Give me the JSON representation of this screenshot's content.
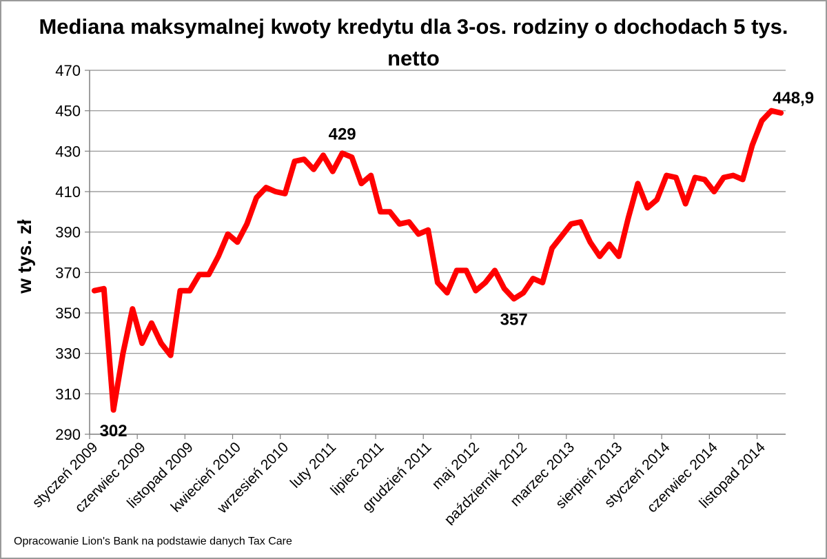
{
  "chart_data": {
    "type": "line",
    "title": "Mediana maksymalnej kwoty kredytu dla 3-os. rodziny o dochodach 5 tys. netto",
    "title_lines": [
      "Mediana maksymalnej kwoty kredytu dla 3-os. rodziny o dochodach 5 tys.",
      "netto"
    ],
    "xlabel": "",
    "ylabel": "w tys. zł",
    "ylim": [
      290,
      470
    ],
    "yticks": [
      290,
      310,
      330,
      350,
      370,
      390,
      410,
      430,
      450,
      470
    ],
    "grid": true,
    "legend": "none",
    "line_color": "#ff0000",
    "x_tick_labels": [
      {
        "index": 0,
        "label": "styczeń 2009"
      },
      {
        "index": 5,
        "label": "czerwiec 2009"
      },
      {
        "index": 10,
        "label": "listopad 2009"
      },
      {
        "index": 15,
        "label": "kwiecień 2010"
      },
      {
        "index": 20,
        "label": "wrzesień 2010"
      },
      {
        "index": 25,
        "label": "luty 2011"
      },
      {
        "index": 30,
        "label": "lipiec 2011"
      },
      {
        "index": 35,
        "label": "grudzień 2011"
      },
      {
        "index": 40,
        "label": "maj 2012"
      },
      {
        "index": 45,
        "label": "październik 2012"
      },
      {
        "index": 50,
        "label": "marzec 2013"
      },
      {
        "index": 55,
        "label": "sierpień 2013"
      },
      {
        "index": 60,
        "label": "styczeń 2014"
      },
      {
        "index": 65,
        "label": "czerwiec 2014"
      },
      {
        "index": 70,
        "label": "listopad 2014"
      }
    ],
    "values": [
      361,
      362,
      302,
      330,
      352,
      335,
      345,
      335,
      329,
      361,
      361,
      369,
      369,
      378,
      389,
      385,
      394,
      407,
      412,
      410,
      409,
      425,
      426,
      421,
      428,
      420,
      429,
      427,
      414,
      418,
      400,
      400,
      394,
      395,
      389,
      391,
      365,
      360,
      371,
      371,
      361,
      365,
      371,
      362,
      357,
      360,
      367,
      365,
      382,
      388,
      394,
      395,
      385,
      378,
      384,
      378,
      397,
      414,
      402,
      406,
      418,
      417,
      404,
      417,
      416,
      410,
      417,
      418,
      416,
      433,
      445,
      450,
      448.9
    ],
    "data_labels": [
      {
        "index": 2,
        "text": "302",
        "position": "below"
      },
      {
        "index": 26,
        "text": "429",
        "position": "above"
      },
      {
        "index": 44,
        "text": "357",
        "position": "below"
      },
      {
        "index": 72,
        "text": "448,9",
        "position": "above-right"
      }
    ]
  },
  "footer": {
    "source": "Opracowanie Lion's Bank na podstawie danych Tax Care"
  }
}
